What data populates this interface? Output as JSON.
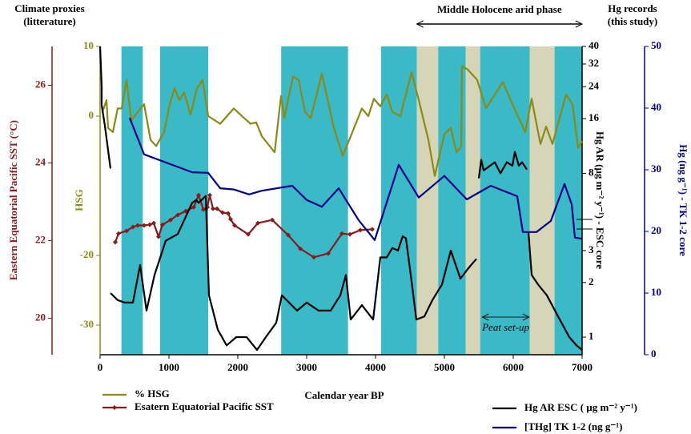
{
  "chart_data": {
    "type": "line",
    "header_left": [
      "Climate proxies",
      "(litterature)"
    ],
    "header_right": [
      "Hg records",
      "(this study)"
    ],
    "x_label": "Calendar year BP",
    "xlim": [
      0,
      7000
    ],
    "xticks": [
      0,
      1000,
      2000,
      3000,
      4000,
      5000,
      6000,
      7000
    ],
    "axes": [
      {
        "id": "sst",
        "title": "Eastern Equatorial Pacific SST (°C)",
        "color": "#8b1a1a",
        "lim": [
          19.06,
          27.0
        ],
        "ticks": [
          20,
          22,
          24,
          26
        ]
      },
      {
        "id": "hsg",
        "title": "HSG",
        "color": "#8a8a14",
        "lim": [
          -34.25,
          10
        ],
        "ticks": [
          10,
          0,
          -20,
          -30
        ]
      },
      {
        "id": "hgar",
        "title": "Hg AR (µg m⁻² y⁻¹) - ESC core",
        "color": "#000000",
        "lim": [
          0.8,
          40
        ],
        "scale": "log",
        "ticks": [
          1,
          2,
          3,
          8,
          16,
          24,
          32,
          40
        ]
      },
      {
        "id": "tk",
        "title": "Hg (ng g⁻¹) - TK 1-2 core",
        "color": "#00008b",
        "lim": [
          0,
          50
        ],
        "ticks": [
          0,
          10,
          20,
          30,
          40,
          50
        ]
      }
    ],
    "bands": [
      {
        "from": 310,
        "to": 620,
        "color": "#3ab9c6"
      },
      {
        "from": 870,
        "to": 1570,
        "color": "#3ab9c6"
      },
      {
        "from": 2630,
        "to": 3600,
        "color": "#3ab9c6"
      },
      {
        "from": 4080,
        "to": 4600,
        "color": "#3ab9c6"
      },
      {
        "from": 4600,
        "to": 4910,
        "color": "#d6d5b8"
      },
      {
        "from": 4910,
        "to": 5310,
        "color": "#3ab9c6"
      },
      {
        "from": 5310,
        "to": 5520,
        "color": "#d6d5b8"
      },
      {
        "from": 5520,
        "to": 6240,
        "color": "#3ab9c6"
      },
      {
        "from": 6240,
        "to": 6600,
        "color": "#d6d5b8"
      },
      {
        "from": 6600,
        "to": 7000,
        "color": "#3ab9c6"
      }
    ],
    "annotations": [
      {
        "text": "Middle Holocene arid phase",
        "from": 4600,
        "to": 7000
      },
      {
        "text": "Peat set-up",
        "from": 5550,
        "to": 6230
      }
    ],
    "series": [
      {
        "name": "% HSG",
        "axis": "hsg",
        "color": "#8a8a14",
        "x": [
          35,
          93,
          116,
          186,
          256,
          314,
          384,
          453,
          547,
          640,
          733,
          814,
          930,
          1012,
          1081,
          1151,
          1221,
          1314,
          1407,
          1488,
          1570,
          1744,
          1942,
          2093,
          2186,
          2268,
          2349,
          2535,
          2628,
          2674,
          2802,
          2884,
          2977,
          3058,
          3221,
          3395,
          3523,
          3640,
          3802,
          3895,
          3977,
          4070,
          4163,
          4244,
          4360,
          4523,
          4628,
          4767,
          4860,
          5000,
          5093,
          5174,
          5244,
          5256,
          5337,
          5477,
          5605,
          5849,
          5988,
          6174,
          6267,
          6337,
          6395,
          6477,
          6570,
          6767,
          6860,
          6942,
          7000
        ],
        "values": [
          0.6,
          2.3,
          -1.7,
          -2.3,
          1.1,
          1.1,
          5.2,
          -0.6,
          0.6,
          1.7,
          -3.4,
          -4.3,
          -2.3,
          1.7,
          4.0,
          2.3,
          3.4,
          0.2,
          4.0,
          5.2,
          0,
          -1.1,
          1.1,
          -0.3,
          -1.1,
          -0.9,
          -2.9,
          -5.2,
          2.9,
          -0.3,
          5.7,
          5.2,
          0.6,
          -0.3,
          6.1,
          -1.7,
          -5.7,
          -2.9,
          1.1,
          0,
          2.5,
          1.4,
          3.1,
          0.6,
          0,
          6.3,
          2.3,
          -3.4,
          -8.6,
          -2.6,
          -1.7,
          -5.2,
          -4.4,
          7.2,
          6.7,
          5.2,
          1.1,
          4.9,
          1.7,
          -2.3,
          2.5,
          -1.1,
          -4.0,
          -1.5,
          -4.0,
          3.1,
          1.7,
          -4.6,
          -3.6
        ]
      },
      {
        "name": "Esatern Equatorial Pacific SST",
        "axis": "sst",
        "color": "#8b1a1a",
        "markers": true,
        "x": [
          221,
          267,
          384,
          477,
          547,
          640,
          721,
          779,
          849,
          907,
          1023,
          1128,
          1244,
          1360,
          1430,
          1500,
          1558,
          1593,
          1640,
          1698,
          1779,
          1860,
          1895,
          1953,
          2151,
          2291,
          2500,
          2733,
          2907,
          3105,
          3314,
          3512,
          3628,
          3779,
          3953
        ],
        "values": [
          21.96,
          22.18,
          22.25,
          22.35,
          22.39,
          22.39,
          22.41,
          22.45,
          22.1,
          22.41,
          22.53,
          22.66,
          22.76,
          22.86,
          23.17,
          22.8,
          22.86,
          23.17,
          22.82,
          22.82,
          22.72,
          22.7,
          22.55,
          22.39,
          22.16,
          22.45,
          22.53,
          22.14,
          21.79,
          21.57,
          21.67,
          22.18,
          22.16,
          22.27,
          22.29
        ]
      },
      {
        "name": "Hg AR ESC ( µg m⁻² y⁻¹)",
        "axis": "hgar",
        "color": "#000000",
        "x": [
          0,
          23,
          23,
          70,
          151,
          151,
          151,
          256,
          360,
          477,
          581,
          674,
          791,
          954,
          1128,
          1337,
          1395,
          1430,
          1535,
          1581,
          1709,
          1837,
          1977,
          2128,
          2279,
          2407,
          2558,
          2640,
          2860,
          3000,
          3174,
          3349,
          3488,
          3570,
          3640,
          3802,
          3965,
          4070,
          4163,
          4244,
          4326,
          4395,
          4442,
          4512,
          4593,
          4709,
          4826,
          4965,
          5093,
          5233,
          5349,
          5465,
          5465,
          5500,
          5535,
          5570,
          5663,
          5733,
          5814,
          5907,
          5988,
          6023,
          6081,
          6128,
          6198,
          6198,
          6221,
          6267,
          6360,
          6488,
          6651,
          6814,
          6919,
          7000
        ],
        "values": [
          40,
          24,
          19,
          14.6,
          8.5,
          null,
          1.75,
          1.6,
          1.55,
          1.55,
          2.5,
          1.4,
          2.2,
          3.4,
          3.7,
          5.5,
          5.7,
          5.5,
          6,
          1.7,
          1.1,
          0.9,
          1.0,
          1.0,
          0.85,
          1.0,
          1.2,
          1.7,
          1.4,
          1.55,
          1.4,
          1.4,
          1.7,
          2.2,
          1.25,
          1.5,
          1.25,
          2.75,
          2.75,
          3.1,
          3.0,
          3.6,
          3.5,
          2.2,
          1.25,
          1.3,
          1.6,
          1.95,
          3.0,
          2.1,
          2.4,
          2.7,
          null,
          7.5,
          9.5,
          8.3,
          8.8,
          9.2,
          8,
          9.2,
          8.8,
          10.5,
          8.8,
          9.2,
          8.4,
          null,
          3.8,
          2.2,
          1.95,
          1.7,
          1.3,
          1.0,
          0.9,
          0.85
        ]
      },
      {
        "name": "[THg] TK 1-2 (ng g⁻¹)",
        "axis": "tk",
        "color": "#00008b",
        "x": [
          430,
          640,
          1337,
          1570,
          1744,
          1942,
          2163,
          2349,
          2791,
          3000,
          3221,
          3465,
          3756,
          3988,
          4337,
          4628,
          5000,
          5326,
          5674,
          6058,
          6140,
          6337,
          6547,
          6744,
          6849,
          6895,
          7000
        ],
        "values": [
          38.4,
          32.5,
          29.6,
          29.5,
          27.0,
          26.8,
          26.0,
          26.6,
          27.4,
          25.1,
          24.0,
          27.0,
          21.8,
          18.6,
          30.8,
          25.5,
          29.0,
          25.2,
          27.4,
          25.7,
          19.9,
          19.9,
          21.7,
          27.7,
          24.4,
          19.0,
          18.8
        ]
      }
    ]
  }
}
